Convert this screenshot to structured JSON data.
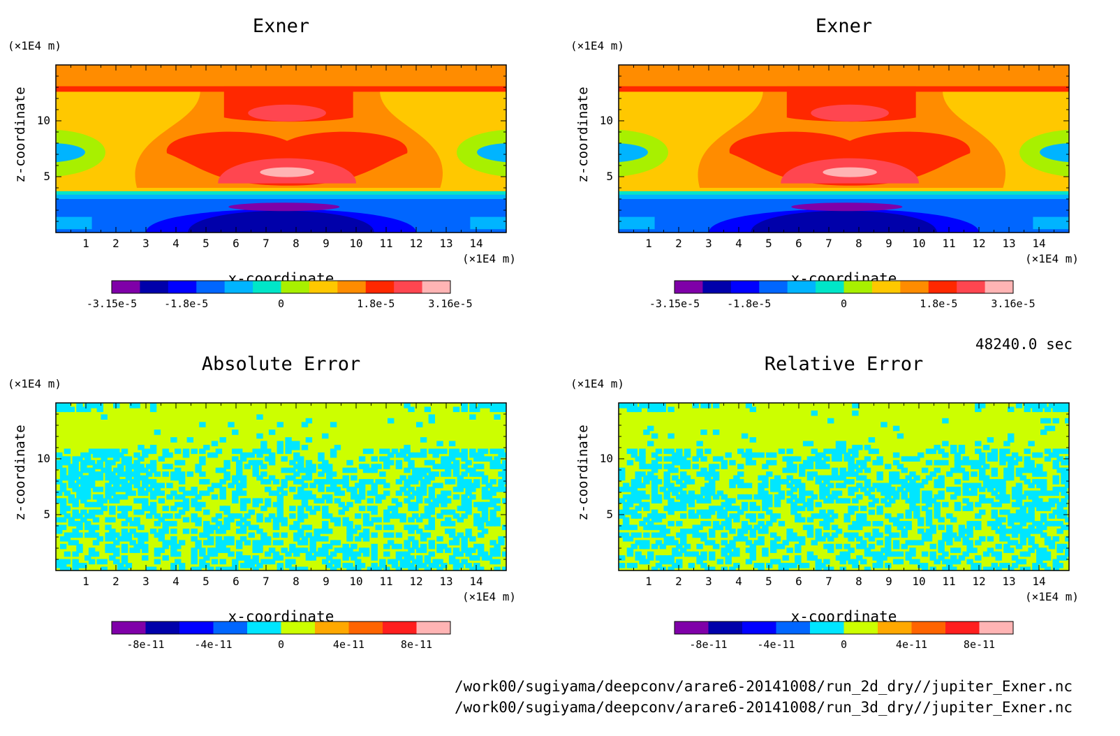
{
  "time_label": "48240.0 sec",
  "files": [
    "/work00/sugiyama/deepconv/arare6-20141008/run_2d_dry//jupiter_Exner.nc",
    "/work00/sugiyama/deepconv/arare6-20141008/run_3d_dry//jupiter_Exner.nc"
  ],
  "chart_data": [
    {
      "type": "heatmap",
      "title": "Exner",
      "xlabel": "x-coordinate",
      "ylabel": "z-coordinate",
      "x_unit": "(×1E4 m)",
      "y_unit": "(×1E4 m)",
      "xlim": [
        0,
        15
      ],
      "ylim": [
        0,
        15
      ],
      "x_ticks": [
        "1",
        "2",
        "3",
        "4",
        "5",
        "6",
        "7",
        "8",
        "9",
        "10",
        "11",
        "12",
        "13",
        "14"
      ],
      "y_ticks": [
        "5",
        "10"
      ],
      "colorbar": {
        "colors": [
          "#7f00a8",
          "#0000aa",
          "#0000ff",
          "#0066ff",
          "#00b4ff",
          "#00e6c8",
          "#a8f000",
          "#ffc800",
          "#ff8c00",
          "#ff2800",
          "#ff4650",
          "#ffb4b4"
        ],
        "tick_labels": [
          "-3.15e-5",
          "-1.8e-5",
          "0",
          "1.8e-5",
          "3.16e-5"
        ]
      },
      "pattern": "exner"
    },
    {
      "type": "heatmap",
      "title": "Exner",
      "xlabel": "x-coordinate",
      "ylabel": "z-coordinate",
      "x_unit": "(×1E4 m)",
      "y_unit": "(×1E4 m)",
      "xlim": [
        0,
        15
      ],
      "ylim": [
        0,
        15
      ],
      "x_ticks": [
        "1",
        "2",
        "3",
        "4",
        "5",
        "6",
        "7",
        "8",
        "9",
        "10",
        "11",
        "12",
        "13",
        "14"
      ],
      "y_ticks": [
        "5",
        "10"
      ],
      "colorbar": {
        "colors": [
          "#7f00a8",
          "#0000aa",
          "#0000ff",
          "#0066ff",
          "#00b4ff",
          "#00e6c8",
          "#a8f000",
          "#ffc800",
          "#ff8c00",
          "#ff2800",
          "#ff4650",
          "#ffb4b4"
        ],
        "tick_labels": [
          "-3.15e-5",
          "-1.8e-5",
          "0",
          "1.8e-5",
          "3.16e-5"
        ]
      },
      "pattern": "exner"
    },
    {
      "type": "heatmap",
      "title": "Absolute Error",
      "xlabel": "x-coordinate",
      "ylabel": "z-coordinate",
      "x_unit": "(×1E4 m)",
      "y_unit": "(×1E4 m)",
      "xlim": [
        0,
        15
      ],
      "ylim": [
        0,
        15
      ],
      "x_ticks": [
        "1",
        "2",
        "3",
        "4",
        "5",
        "6",
        "7",
        "8",
        "9",
        "10",
        "11",
        "12",
        "13",
        "14"
      ],
      "y_ticks": [
        "5",
        "10"
      ],
      "colorbar": {
        "colors": [
          "#7f00a8",
          "#0000aa",
          "#0000ff",
          "#0066ff",
          "#00e6ff",
          "#ccff00",
          "#ffa800",
          "#ff6400",
          "#ff1e1e",
          "#ffb4b4"
        ],
        "tick_labels": [
          "-8e-11",
          "-4e-11",
          "0",
          "4e-11",
          "8e-11"
        ]
      },
      "pattern": "error"
    },
    {
      "type": "heatmap",
      "title": "Relative Error",
      "xlabel": "x-coordinate",
      "ylabel": "z-coordinate",
      "x_unit": "(×1E4 m)",
      "y_unit": "(×1E4 m)",
      "xlim": [
        0,
        15
      ],
      "ylim": [
        0,
        15
      ],
      "x_ticks": [
        "1",
        "2",
        "3",
        "4",
        "5",
        "6",
        "7",
        "8",
        "9",
        "10",
        "11",
        "12",
        "13",
        "14"
      ],
      "y_ticks": [
        "5",
        "10"
      ],
      "colorbar": {
        "colors": [
          "#7f00a8",
          "#0000aa",
          "#0000ff",
          "#0066ff",
          "#00e6ff",
          "#ccff00",
          "#ffa800",
          "#ff6400",
          "#ff1e1e",
          "#ffb4b4"
        ],
        "tick_labels": [
          "-8e-11",
          "-4e-11",
          "0",
          "4e-11",
          "8e-11"
        ]
      },
      "pattern": "error"
    }
  ]
}
